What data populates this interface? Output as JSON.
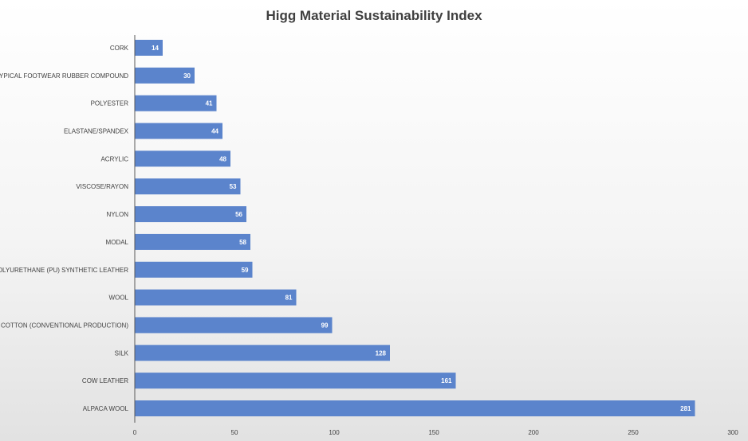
{
  "chart_data": {
    "type": "bar",
    "orientation": "horizontal",
    "title": "Higg Material Sustainability Index",
    "categories": [
      "CORK",
      "TYPICAL FOOTWEAR RUBBER COMPOUND",
      "POLYESTER",
      "ELASTANE/SPANDEX",
      "ACRYLIC",
      "VISCOSE/RAYON",
      "NYLON",
      "MODAL",
      "POLYURETHANE (PU) SYNTHETIC LEATHER",
      "WOOL",
      "COTTON (CONVENTIONAL PRODUCTION)",
      "SILK",
      "COW LEATHER",
      "ALPACA WOOL"
    ],
    "values": [
      14,
      30,
      41,
      44,
      48,
      53,
      56,
      58,
      59,
      81,
      99,
      128,
      161,
      281
    ],
    "data_labels": [
      "14",
      "30",
      "41",
      "44",
      "48",
      "53",
      "56",
      "58",
      "59",
      "81",
      "99",
      "128",
      "161",
      "281"
    ],
    "xlim": [
      0,
      300
    ],
    "xticks": [
      0,
      50,
      100,
      150,
      200,
      250,
      300
    ],
    "xtick_labels": [
      "0",
      "50",
      "100",
      "150",
      "200",
      "250",
      "300"
    ],
    "xlabel": "",
    "ylabel": "",
    "grid": false,
    "legend": "none",
    "bar_color": "#5b84cc",
    "data_label_color": "#ffffff"
  }
}
